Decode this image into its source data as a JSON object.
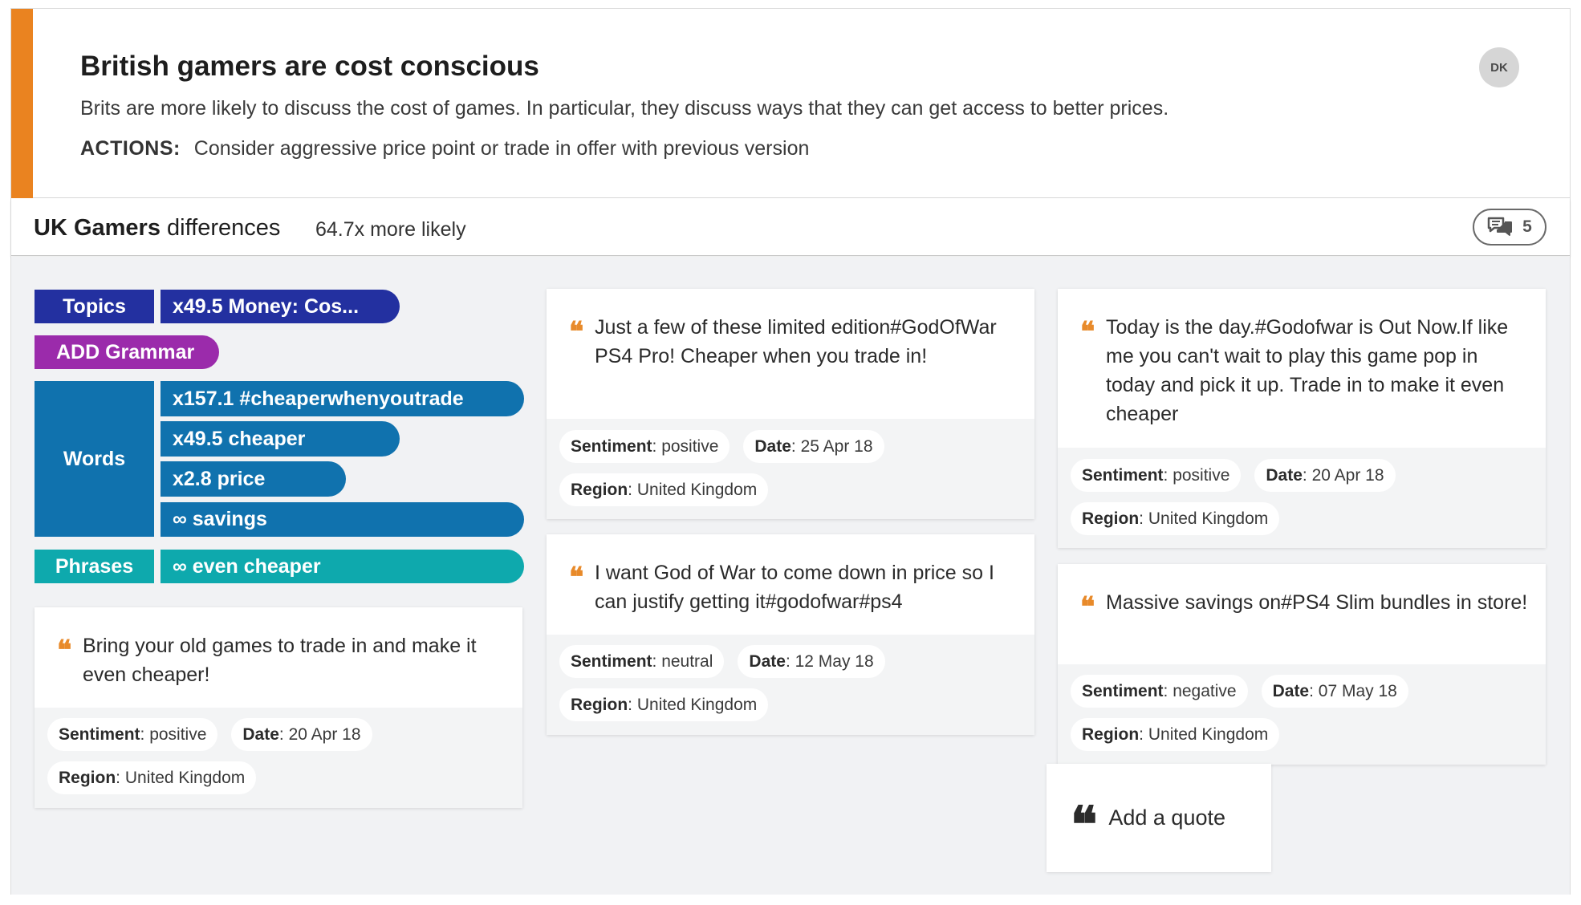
{
  "insight": {
    "title": "British gamers are cost conscious",
    "description": "Brits are more likely to discuss the cost of games. In particular, they discuss ways that they can get access to better prices.",
    "actions_label": "ACTIONS:",
    "actions_text": "Consider aggressive price point or trade in offer with previous version",
    "avatar_initials": "DK",
    "accent_color": "#ea8320"
  },
  "differences": {
    "group": "UK Gamers",
    "suffix": "differences",
    "likelihood": "64.7x more likely",
    "comment_icon": "comments-icon",
    "comment_count": "5"
  },
  "tags": {
    "topics_label": "Topics",
    "topics_value": "x49.5 Money: Cos...",
    "grammar_label": "ADD Grammar",
    "words_label": "Words",
    "words": [
      "x157.1 #cheaperwhenyoutrade",
      "x49.5 cheaper",
      "x2.8 price",
      "∞ savings"
    ],
    "phrases_label": "Phrases",
    "phrases_value": "∞ even cheaper",
    "colors": {
      "topics": "#2330a0",
      "grammar": "#9b2bab",
      "words": "#1072ae",
      "phrases": "#0ea9ad"
    }
  },
  "meta_keys": {
    "sentiment": "Sentiment",
    "date": "Date",
    "region": "Region"
  },
  "quotes": [
    {
      "text": "Bring your old games to trade in and make it even cheaper!",
      "sentiment": "positive",
      "date": "20 Apr 18",
      "region": "United Kingdom"
    },
    {
      "text": "Just a few of these limited edition#GodOfWar PS4 Pro! Cheaper when you trade in!",
      "sentiment": "positive",
      "date": "25 Apr 18",
      "region": "United Kingdom"
    },
    {
      "text": "I want God of War to come down in price so I can justify getting it#godofwar#ps4",
      "sentiment": "neutral",
      "date": "12 May 18",
      "region": "United Kingdom"
    },
    {
      "text": "Today is the day.#Godofwar is Out Now.If like me you can't wait to play this game pop in today and pick it up. Trade in to make it even cheaper",
      "sentiment": "positive",
      "date": "20 Apr 18",
      "region": "United Kingdom"
    },
    {
      "text": "Massive savings on#PS4 Slim bundles in store!",
      "sentiment": "negative",
      "date": "07 May 18",
      "region": "United Kingdom"
    }
  ],
  "add_quote_label": "Add a quote"
}
